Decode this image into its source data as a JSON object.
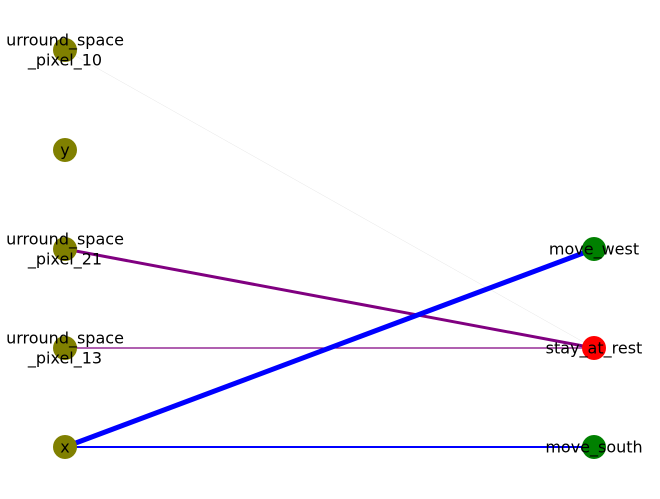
{
  "diagram": {
    "node_colors": {
      "input": "#808000",
      "action": "#008000",
      "selected_action": "#ff0000"
    },
    "nodes": [
      {
        "id": "sp10",
        "label_lines": [
          "urround_space",
          "_pixel_10"
        ],
        "group": "input"
      },
      {
        "id": "y",
        "label_lines": [
          "y"
        ],
        "group": "input"
      },
      {
        "id": "sp21",
        "label_lines": [
          "urround_space",
          "_pixel_21"
        ],
        "group": "input"
      },
      {
        "id": "sp13",
        "label_lines": [
          "urround_space",
          "_pixel_13"
        ],
        "group": "input"
      },
      {
        "id": "x",
        "label_lines": [
          "x"
        ],
        "group": "input"
      },
      {
        "id": "move_west",
        "label_lines": [
          "move_west"
        ],
        "group": "action"
      },
      {
        "id": "stay_at_rest",
        "label_lines": [
          "stay_at_rest"
        ],
        "group": "selected_action"
      },
      {
        "id": "move_south",
        "label_lines": [
          "move_south"
        ],
        "group": "action"
      }
    ],
    "edges": [
      {
        "from": "sp10",
        "to": "stay_at_rest",
        "color": "#e6e6e6",
        "weight": 0.5
      },
      {
        "from": "sp21",
        "to": "stay_at_rest",
        "color": "#800080",
        "weight": 3
      },
      {
        "from": "sp13",
        "to": "stay_at_rest",
        "color": "#800080",
        "weight": 1.2
      },
      {
        "from": "x",
        "to": "move_west",
        "color": "#0000ff",
        "weight": 5
      },
      {
        "from": "x",
        "to": "move_south",
        "color": "#0000ff",
        "weight": 2
      }
    ]
  }
}
